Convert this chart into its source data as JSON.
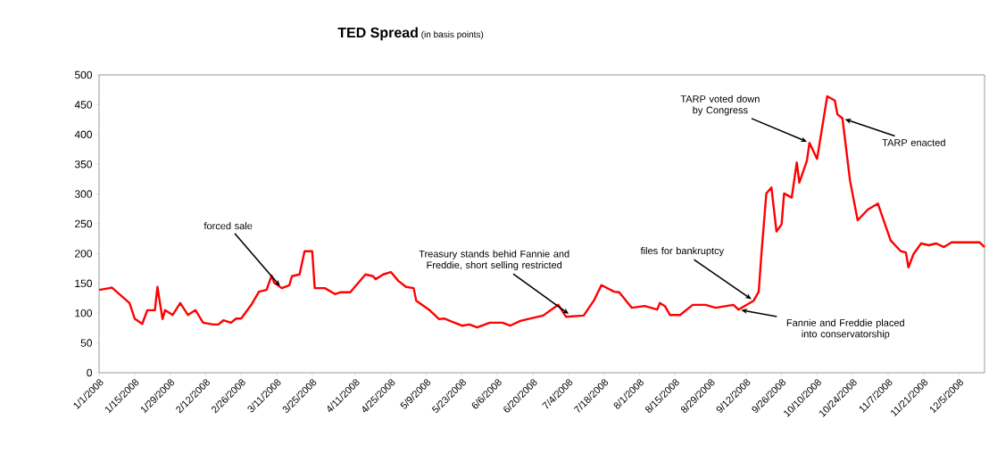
{
  "chart_data": {
    "type": "line",
    "title": "TED Spread",
    "subtitle": "(in basis points)",
    "color": "#ff0000",
    "x": [
      "2008-01-01",
      "2008-01-05",
      "2008-01-06",
      "2008-01-09",
      "2008-01-13",
      "2008-01-15",
      "2008-01-18",
      "2008-01-20",
      "2008-01-23",
      "2008-01-24",
      "2008-01-26",
      "2008-01-27",
      "2008-01-30",
      "2008-02-02",
      "2008-02-05",
      "2008-02-08",
      "2008-02-11",
      "2008-02-15",
      "2008-02-17",
      "2008-02-19",
      "2008-02-22",
      "2008-02-24",
      "2008-02-26",
      "2008-03-01",
      "2008-03-04",
      "2008-03-07",
      "2008-03-09",
      "2008-03-10",
      "2008-03-13",
      "2008-03-16",
      "2008-03-17",
      "2008-03-20",
      "2008-03-22",
      "2008-03-25",
      "2008-03-26",
      "2008-03-30",
      "2008-04-03",
      "2008-04-05",
      "2008-04-09",
      "2008-04-12",
      "2008-04-15",
      "2008-04-18",
      "2008-04-19",
      "2008-04-22",
      "2008-04-25",
      "2008-04-28",
      "2008-05-01",
      "2008-05-04",
      "2008-05-05",
      "2008-05-10",
      "2008-05-14",
      "2008-05-16",
      "2008-05-23",
      "2008-05-26",
      "2008-05-29",
      "2008-06-03",
      "2008-06-08",
      "2008-06-11",
      "2008-06-15",
      "2008-06-18",
      "2008-06-24",
      "2008-06-30",
      "2008-07-03",
      "2008-07-10",
      "2008-07-14",
      "2008-07-17",
      "2008-07-22",
      "2008-07-24",
      "2008-07-29",
      "2008-08-03",
      "2008-08-08",
      "2008-08-09",
      "2008-08-11",
      "2008-08-13",
      "2008-08-17",
      "2008-08-22",
      "2008-08-27",
      "2008-08-31",
      "2008-09-07",
      "2008-09-09",
      "2008-09-15",
      "2008-09-17",
      "2008-09-18",
      "2008-09-20",
      "2008-09-22",
      "2008-09-24",
      "2008-09-26",
      "2008-09-27",
      "2008-09-30",
      "2008-10-02",
      "2008-10-03",
      "2008-10-06",
      "2008-10-07",
      "2008-10-10",
      "2008-10-14",
      "2008-10-17",
      "2008-10-18",
      "2008-10-20",
      "2008-10-23",
      "2008-10-26",
      "2008-10-30",
      "2008-11-03",
      "2008-11-04",
      "2008-11-08",
      "2008-11-12",
      "2008-11-14",
      "2008-11-15",
      "2008-11-17",
      "2008-11-20",
      "2008-11-23",
      "2008-11-26",
      "2008-11-29",
      "2008-12-02",
      "2008-12-07",
      "2008-12-13",
      "2008-12-15"
    ],
    "values": [
      139,
      142,
      143,
      132,
      117,
      91,
      82,
      105,
      105,
      144,
      90,
      105,
      97,
      117,
      97,
      105,
      84,
      81,
      81,
      88,
      84,
      91,
      91,
      114,
      136,
      139,
      163,
      151,
      142,
      147,
      162,
      165,
      204,
      204,
      142,
      142,
      132,
      135,
      135,
      150,
      165,
      162,
      157,
      165,
      169,
      154,
      144,
      142,
      121,
      106,
      90,
      91,
      79,
      81,
      76,
      84,
      84,
      79,
      87,
      90,
      96,
      114,
      94,
      96,
      121,
      147,
      136,
      135,
      109,
      112,
      106,
      117,
      112,
      97,
      97,
      114,
      114,
      109,
      114,
      106,
      121,
      136,
      196,
      301,
      311,
      237,
      249,
      301,
      294,
      353,
      319,
      356,
      386,
      359,
      464,
      457,
      434,
      427,
      322,
      256,
      274,
      284,
      271,
      222,
      204,
      202,
      177,
      199,
      217,
      214,
      217,
      211,
      219,
      219,
      219,
      211
    ],
    "xlim": [
      "2008-01-01",
      "2008-12-15"
    ],
    "xticks": [
      {
        "value": "2008-01-01",
        "label": "1/1/2008"
      },
      {
        "value": "2008-01-15",
        "label": "1/15/2008"
      },
      {
        "value": "2008-01-29",
        "label": "1/29/2008"
      },
      {
        "value": "2008-02-12",
        "label": "2/12/2008"
      },
      {
        "value": "2008-02-26",
        "label": "2/26/2008"
      },
      {
        "value": "2008-03-11",
        "label": "3/11/2008"
      },
      {
        "value": "2008-03-25",
        "label": "3/25/2008"
      },
      {
        "value": "2008-04-11",
        "label": "4/11/2008"
      },
      {
        "value": "2008-04-25",
        "label": "4/25/2008"
      },
      {
        "value": "2008-05-09",
        "label": "5/9/2008"
      },
      {
        "value": "2008-05-23",
        "label": "5/23/2008"
      },
      {
        "value": "2008-06-06",
        "label": "6/6/2008"
      },
      {
        "value": "2008-06-20",
        "label": "6/20/2008"
      },
      {
        "value": "2008-07-04",
        "label": "7/4/2008"
      },
      {
        "value": "2008-07-18",
        "label": "7/18/2008"
      },
      {
        "value": "2008-08-01",
        "label": "8/1/2008"
      },
      {
        "value": "2008-08-15",
        "label": "8/15/2008"
      },
      {
        "value": "2008-08-29",
        "label": "8/29/2008"
      },
      {
        "value": "2008-09-12",
        "label": "9/12/2008"
      },
      {
        "value": "2008-09-26",
        "label": "9/26/2008"
      },
      {
        "value": "2008-10-10",
        "label": "10/10/2008"
      },
      {
        "value": "2008-10-24",
        "label": "10/24/2008"
      },
      {
        "value": "2008-11-07",
        "label": "11/7/2008"
      },
      {
        "value": "2008-11-21",
        "label": "11/21/2008"
      },
      {
        "value": "2008-12-05",
        "label": "12/5/2008"
      }
    ],
    "ylim": [
      0,
      500
    ],
    "yticks": [
      0,
      50,
      100,
      150,
      200,
      250,
      300,
      350,
      400,
      450,
      500
    ],
    "annotations": [
      {
        "text": "forced sale",
        "x": "2008-03-13",
        "y": 142
      },
      {
        "text": "Treasury stands behid Fannie and Freddie, short selling restricted",
        "x": "2008-07-05",
        "y": 96
      },
      {
        "text": "files for bankruptcy",
        "x": "2008-09-15",
        "y": 121
      },
      {
        "text": "Fannie and Freddie placed into conservatorship",
        "x": "2008-09-09",
        "y": 106
      },
      {
        "text": "TARP voted down by Congress",
        "x": "2008-10-07",
        "y": 386
      },
      {
        "text": "TARP enacted",
        "x": "2008-10-20",
        "y": 427
      }
    ]
  }
}
